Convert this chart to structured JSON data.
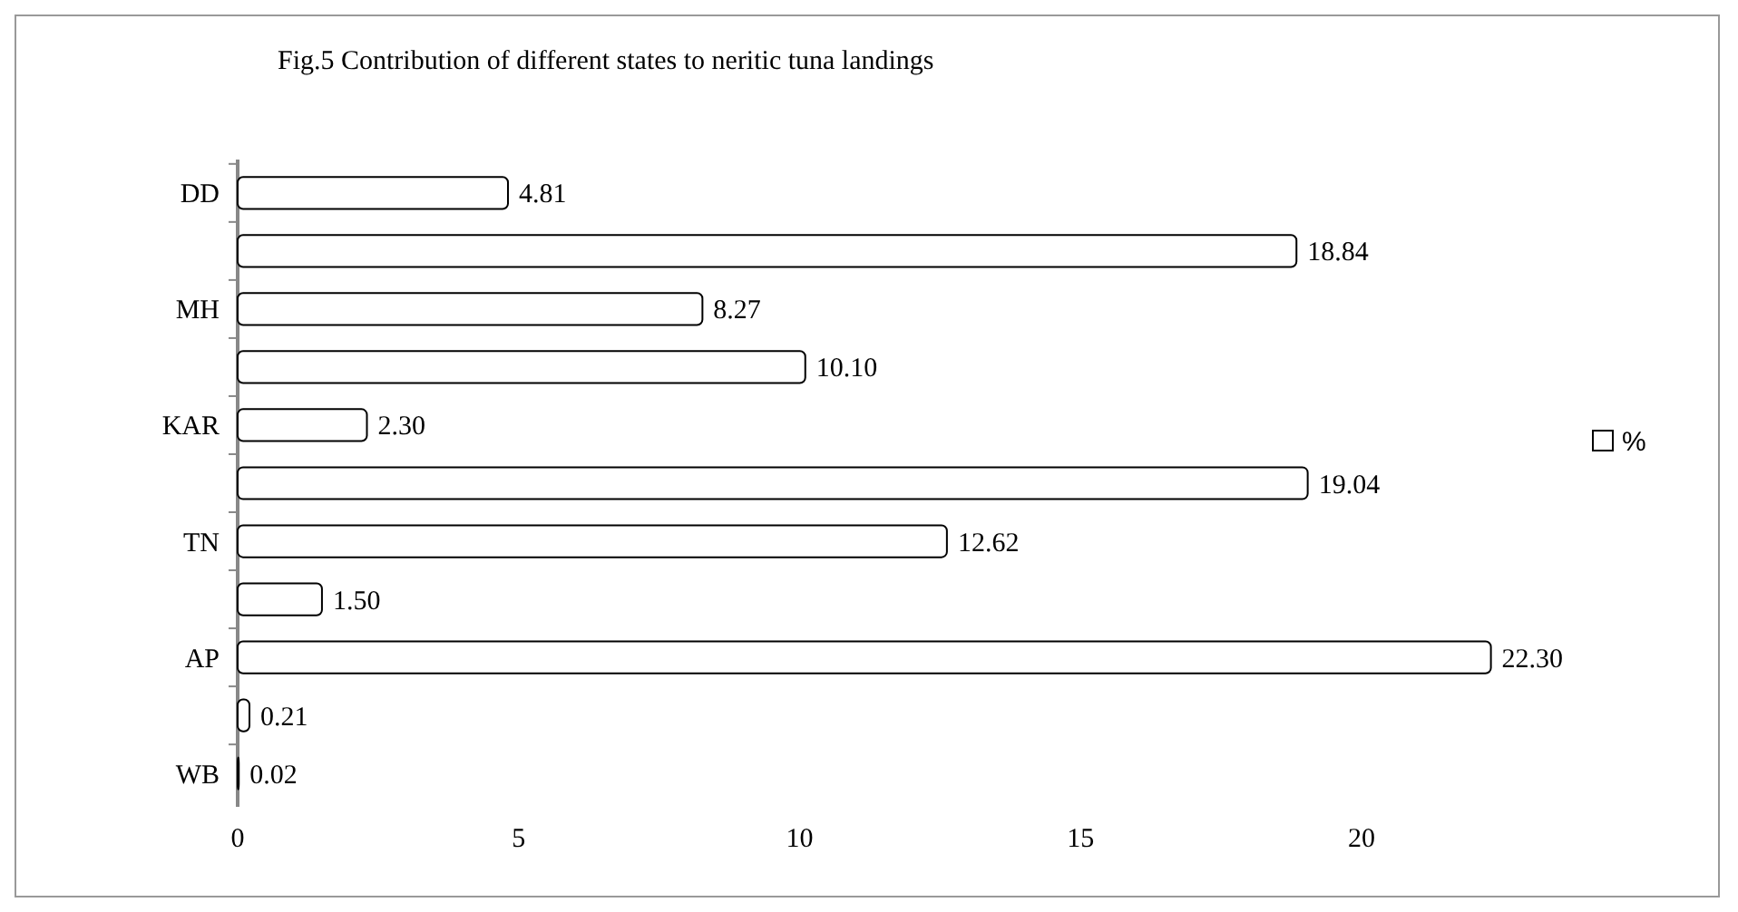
{
  "chart_data": {
    "type": "bar",
    "orientation": "horizontal",
    "title": "Fig.5 Contribution of different states to neritic tuna landings",
    "categories": [
      "DD",
      null,
      "MH",
      null,
      "KAR",
      null,
      "TN",
      null,
      "AP",
      null,
      "WB"
    ],
    "series": [
      {
        "name": "%",
        "color": "#ffffff",
        "values": [
          4.81,
          18.84,
          8.27,
          10.1,
          2.3,
          19.04,
          12.62,
          1.5,
          22.3,
          0.21,
          0.02
        ],
        "value_labels": [
          "4.81",
          "18.84",
          "8.27",
          "10.10",
          "2.30",
          "19.04",
          "12.62",
          "1.50",
          "22.30",
          "0.21",
          "0.02"
        ]
      }
    ],
    "xlim": [
      0,
      22.5
    ],
    "xticks": [
      0,
      5,
      10,
      15,
      20
    ],
    "grid": false,
    "legend": "right"
  }
}
